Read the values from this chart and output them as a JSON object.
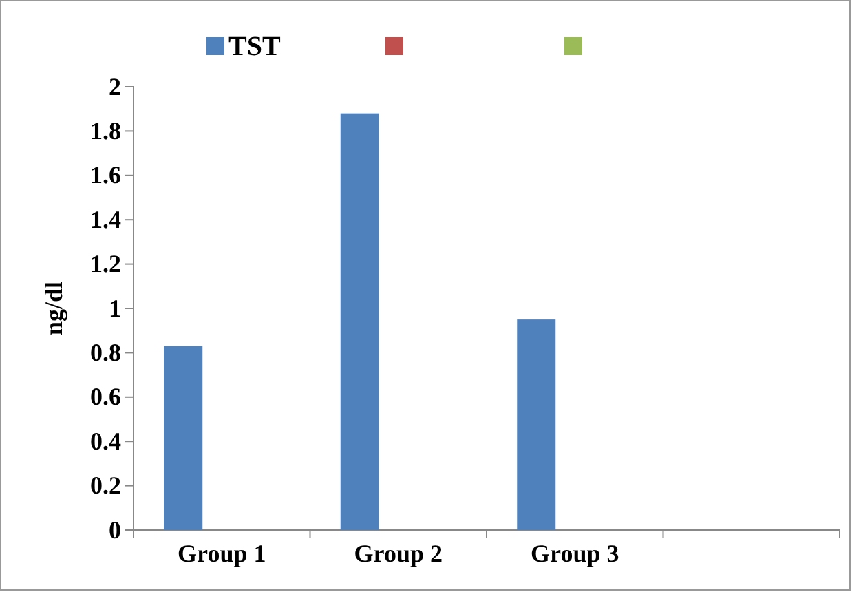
{
  "chart_data": {
    "type": "bar",
    "ylabel": "ng/dl",
    "categories": [
      "Group 1",
      "Group 2",
      "Group 3",
      null
    ],
    "series": [
      {
        "name": "TST",
        "color": "#4f81bd",
        "values": [
          0.83,
          1.88,
          0.95,
          null
        ]
      },
      {
        "color": "#c0504d",
        "values": [
          null,
          null,
          null,
          null
        ]
      },
      {
        "color": "#9bbb59",
        "values": [
          null,
          null,
          null,
          null
        ]
      }
    ],
    "ylim": [
      0,
      2
    ],
    "yticks": [
      0,
      0.2,
      0.4,
      0.6,
      0.8,
      1,
      1.2,
      1.4,
      1.6,
      1.8,
      2
    ],
    "grid": false,
    "legend": "top"
  }
}
